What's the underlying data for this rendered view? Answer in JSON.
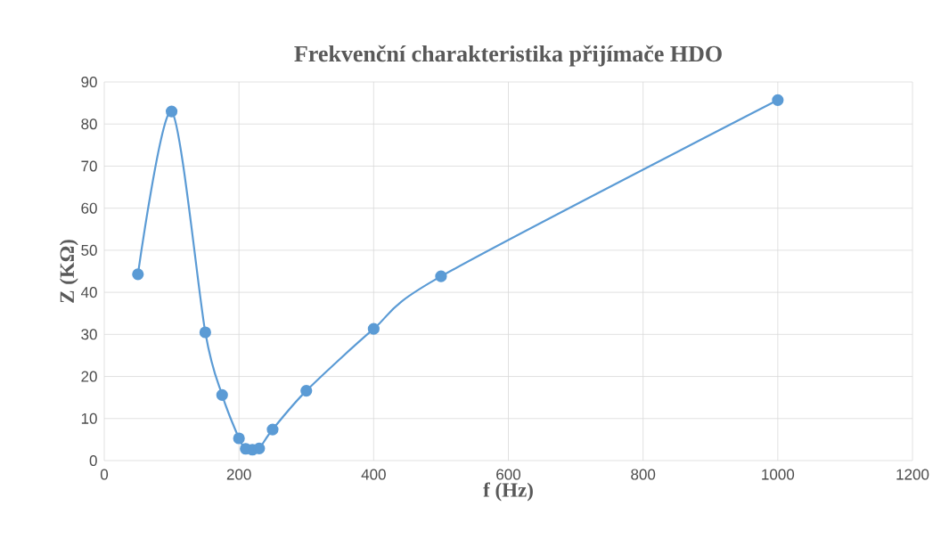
{
  "chart_data": {
    "type": "line",
    "title": "Frekvenční charakteristika přijímače HDO",
    "xlabel": "f (Hz)",
    "ylabel": "Z (KΩ)",
    "x": [
      50,
      100,
      150,
      175,
      200,
      210,
      220,
      230,
      250,
      300,
      400,
      500,
      1000
    ],
    "series": [
      {
        "color": "#5b9bd5",
        "values": [
          44.3,
          83.0,
          30.5,
          15.6,
          5.3,
          2.8,
          2.6,
          2.9,
          7.4,
          16.6,
          31.3,
          43.8,
          85.7
        ]
      }
    ],
    "xlim": [
      0,
      1200
    ],
    "xticks": [
      0,
      200,
      400,
      600,
      800,
      1000,
      1200
    ],
    "ylim": [
      0,
      90
    ],
    "yticks": [
      0,
      10,
      20,
      30,
      40,
      50,
      60,
      70,
      80,
      90
    ],
    "grid": true,
    "marker": "circle",
    "line_style": "solid"
  }
}
